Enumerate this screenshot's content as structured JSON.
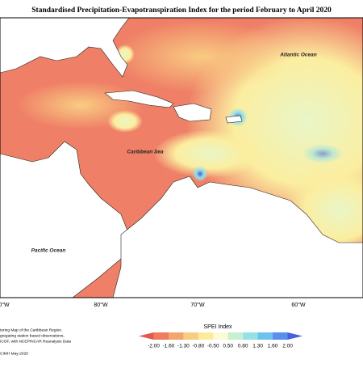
{
  "header": {
    "title": "Standardised Precipitation-Evapotranspiration Index for the period February to April 2020"
  },
  "map": {
    "labels": [
      "Atlantic Ocean",
      "Caribbean Sea",
      "Pacific Ocean"
    ],
    "longitude_labels": [
      "0°W",
      "80°W",
      "70°W",
      "60°W"
    ]
  },
  "legend": {
    "title": "SPEI Index",
    "ticks": [
      "-2.00",
      "-1.60",
      "-1.30",
      "-0.80",
      "-0.50",
      "0.50",
      "0.80",
      "1.30",
      "1.60",
      "2.00"
    ],
    "colors": [
      "#e4574a",
      "#ee7d5f",
      "#f4a56f",
      "#f9cc82",
      "#fdeb9c",
      "#fbfbd8",
      "#c9efd2",
      "#95e1e6",
      "#6cc3f0",
      "#5a8fee",
      "#4a5fe0"
    ]
  },
  "footer": {
    "notes": [
      "toring Map of the Caribbean Region.",
      "gregating station based observations,",
      "ICOF, with NCEP/NCAR Reanalysis Data"
    ],
    "credit": "CIMH May-2020"
  }
}
